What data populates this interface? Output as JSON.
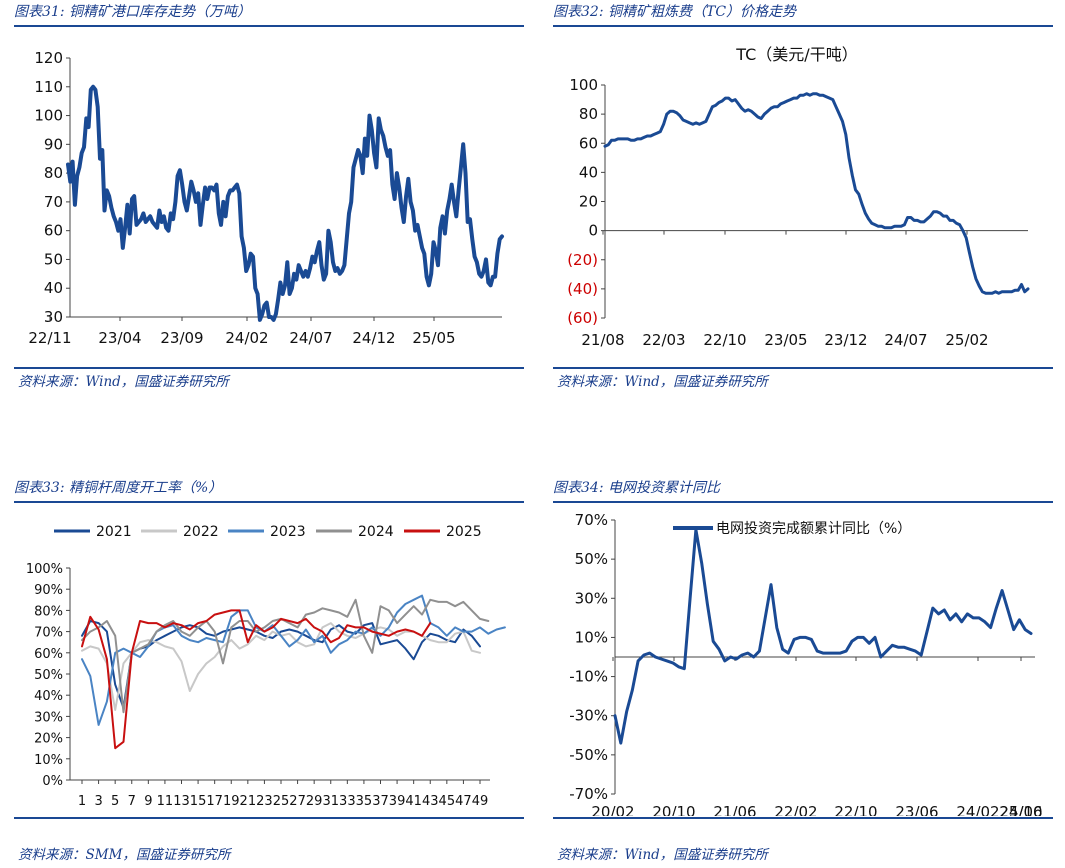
{
  "colors": {
    "title": "#1a3e8c",
    "rule": "#1a4894",
    "navy": "#1a4a94",
    "neg": "#cc0000"
  },
  "chart_data": [
    {
      "id": "c31",
      "type": "line",
      "title": "图表31:  铜精矿港口库存走势（万吨）",
      "source": "资料来源：Wind，国盛证券研究所",
      "ylim": [
        30,
        120
      ],
      "yticks": [
        "120",
        "110",
        "100",
        "90",
        "80",
        "70",
        "60",
        "50",
        "40",
        "30"
      ],
      "xticks": [
        "22/11",
        "23/04",
        "23/09",
        "24/02",
        "24/07",
        "24/12",
        "25/05"
      ],
      "series": [
        {
          "name": "港口库存",
          "color": "#1a4a94",
          "values": [
            83,
            77,
            84,
            69,
            79,
            82,
            87,
            89,
            99,
            96,
            109,
            110,
            109,
            103,
            85,
            88,
            67,
            74,
            72,
            68,
            65,
            63,
            60,
            64,
            54,
            61,
            69,
            59,
            71,
            72,
            62,
            63,
            64,
            66,
            63,
            64,
            65,
            63,
            62,
            61,
            67,
            63,
            65,
            61,
            60,
            66,
            64,
            70,
            79,
            81,
            76,
            70,
            67,
            72,
            77,
            74,
            70,
            73,
            62,
            69,
            75,
            71,
            75,
            75,
            74,
            76,
            66,
            62,
            70,
            65,
            72,
            74,
            74,
            75,
            76,
            73,
            58,
            54,
            46,
            48,
            52,
            51,
            40,
            38,
            29,
            31,
            34,
            35,
            30,
            30,
            29,
            31,
            36,
            42,
            38,
            41,
            49,
            38,
            40,
            45,
            43,
            48,
            46,
            44,
            46,
            44,
            47,
            51,
            49,
            53,
            56,
            48,
            43,
            45,
            60,
            56,
            49,
            46,
            47,
            45,
            46,
            48,
            57,
            66,
            70,
            82,
            85,
            88,
            86,
            80,
            92,
            86,
            100,
            95,
            87,
            82,
            99,
            95,
            93,
            89,
            86,
            88,
            76,
            71,
            80,
            75,
            68,
            63,
            72,
            78,
            70,
            67,
            60,
            62,
            58,
            54,
            52,
            44,
            41,
            45,
            56,
            53,
            48,
            61,
            65,
            59,
            67,
            71,
            76,
            70,
            65,
            74,
            82,
            90,
            80,
            63,
            64,
            57,
            51,
            49,
            45,
            44,
            46,
            50,
            42,
            41,
            44,
            44,
            52,
            57,
            58
          ],
          "xrange": [
            0,
            193
          ]
        }
      ]
    },
    {
      "id": "c32",
      "type": "line",
      "title": "图表32:  铜精矿粗炼费（TC）价格走势",
      "source": "资料来源：Wind，国盛证券研究所",
      "inner_title": "TC（美元/干吨）",
      "ylim": [
        -60,
        100
      ],
      "yticks": [
        "100",
        "80",
        "60",
        "40",
        "20",
        "0",
        "(20)",
        "(40)",
        "(60)"
      ],
      "xticks": [
        "21/08",
        "22/03",
        "22/10",
        "23/05",
        "23/12",
        "24/07",
        "25/02"
      ],
      "series": [
        {
          "name": "TC",
          "color": "#1a4a94",
          "values": [
            58,
            59,
            62,
            62,
            63,
            63,
            63,
            63,
            62,
            62,
            63,
            63,
            64,
            65,
            65,
            66,
            67,
            68,
            73,
            80,
            82,
            82,
            81,
            79,
            76,
            75,
            74,
            73,
            74,
            73,
            74,
            75,
            80,
            85,
            86,
            88,
            89,
            91,
            91,
            89,
            90,
            87,
            84,
            82,
            83,
            82,
            80,
            78,
            77,
            80,
            82,
            84,
            85,
            85,
            87,
            88,
            89,
            90,
            91,
            91,
            93,
            93,
            94,
            93,
            94,
            94,
            93,
            93,
            92,
            91,
            90,
            85,
            80,
            75,
            66,
            50,
            38,
            28,
            25,
            18,
            12,
            8,
            5,
            4,
            3,
            3,
            2,
            2,
            2,
            3,
            3,
            3,
            4,
            9,
            9,
            7,
            7,
            6,
            6,
            8,
            10,
            13,
            13,
            12,
            10,
            10,
            7,
            7,
            5,
            4,
            0,
            -5,
            -15,
            -25,
            -33,
            -38,
            -42,
            -43,
            -43,
            -43,
            -42,
            -43,
            -42,
            -42,
            -42,
            -42,
            -41,
            -41,
            -37,
            -42,
            -40
          ],
          "xrange": [
            0,
            141
          ]
        }
      ]
    },
    {
      "id": "c33",
      "type": "line",
      "title": "图表33:  精铜杆周度开工率（%）",
      "source": "资料来源：SMM，国盛证券研究所",
      "ylim": [
        0,
        100
      ],
      "yticks": [
        "100%",
        "90%",
        "80%",
        "70%",
        "60%",
        "50%",
        "40%",
        "30%",
        "20%",
        "10%",
        "0%"
      ],
      "xticks": [
        "1",
        "3",
        "5",
        "7",
        "9",
        "11",
        "13",
        "15",
        "17",
        "19",
        "21",
        "23",
        "25",
        "27",
        "29",
        "31",
        "33",
        "35",
        "37",
        "39",
        "41",
        "43",
        "45",
        "47",
        "49"
      ],
      "series": [
        {
          "name": "2021",
          "color": "#1a4a94",
          "values": [
            68,
            75,
            74,
            70,
            45,
            34,
            60,
            62,
            63,
            66,
            68,
            70,
            72,
            73,
            72,
            69,
            68,
            70,
            71,
            72,
            71,
            70,
            68,
            67,
            70,
            71,
            70,
            68,
            66,
            65,
            71,
            73,
            70,
            69,
            73,
            74,
            64,
            65,
            66,
            62,
            57,
            65,
            69,
            68,
            66,
            65,
            71,
            68,
            63
          ]
        },
        {
          "name": "2022",
          "color": "#c8c8c8",
          "values": [
            61,
            63,
            62,
            55,
            33,
            55,
            60,
            65,
            66,
            65,
            63,
            62,
            56,
            42,
            50,
            55,
            58,
            63,
            66,
            62,
            64,
            68,
            66,
            70,
            68,
            69,
            65,
            63,
            64,
            72,
            74,
            70,
            68,
            67,
            69,
            71,
            72,
            71,
            68,
            70,
            70,
            68,
            66,
            65,
            65,
            69,
            70,
            61,
            60
          ]
        },
        {
          "name": "2023",
          "color": "#4a84c4",
          "values": [
            57,
            49,
            26,
            37,
            60,
            62,
            60,
            58,
            63,
            70,
            72,
            73,
            68,
            66,
            65,
            67,
            66,
            65,
            77,
            80,
            80,
            72,
            70,
            73,
            68,
            63,
            66,
            71,
            65,
            68,
            60,
            64,
            66,
            70,
            69,
            72,
            68,
            72,
            79,
            83,
            85,
            87,
            74,
            72,
            68,
            72,
            70,
            70,
            72,
            69,
            71,
            72
          ]
        },
        {
          "name": "2024",
          "color": "#909090",
          "values": [
            66,
            70,
            72,
            75,
            68,
            32,
            60,
            62,
            64,
            70,
            73,
            75,
            70,
            68,
            72,
            75,
            70,
            55,
            72,
            75,
            75,
            70,
            72,
            75,
            76,
            74,
            72,
            78,
            79,
            81,
            80,
            79,
            77,
            85,
            68,
            60,
            82,
            80,
            74,
            78,
            82,
            78,
            85,
            84,
            84,
            82,
            84,
            80,
            76,
            75
          ]
        },
        {
          "name": "2025",
          "color": "#c81010",
          "values": [
            63,
            77,
            71,
            57,
            15,
            18,
            60,
            75,
            74,
            74,
            72,
            74,
            73,
            71,
            74,
            75,
            78,
            79,
            80,
            80,
            65,
            73,
            70,
            72,
            76,
            75,
            74,
            76,
            72,
            70,
            65,
            67,
            73,
            72,
            72,
            70,
            69,
            68,
            70,
            71,
            70,
            68,
            74
          ]
        }
      ],
      "xrange": [
        1,
        49
      ]
    },
    {
      "id": "c34",
      "type": "line",
      "title": "图表34:  电网投资累计同比",
      "source": "资料来源：Wind，国盛证券研究所",
      "legend": "电网投资完成额累计同比（%）",
      "ylim": [
        -70,
        70
      ],
      "yticks": [
        "70%",
        "50%",
        "30%",
        "10%",
        "-10%",
        "-30%",
        "-50%",
        "-70%"
      ],
      "xticks": [
        "20/02",
        "20/10",
        "21/06",
        "22/02",
        "22/10",
        "23/06",
        "24/02",
        "24/10",
        "25/06"
      ],
      "series": [
        {
          "name": "电网投资完成额累计同比（%）",
          "color": "#1a4a94",
          "values": [
            -30,
            -44,
            -28,
            -17,
            -2,
            1,
            2,
            0,
            -1,
            -2,
            -3,
            -5,
            -6,
            30,
            65,
            48,
            27,
            8,
            4,
            -2,
            0,
            -1,
            1,
            2,
            0,
            3,
            20,
            37,
            15,
            4,
            2,
            9,
            10,
            10,
            9,
            3,
            2,
            2,
            2,
            2,
            3,
            8,
            10,
            10,
            7,
            10,
            0,
            3,
            6,
            5,
            5,
            4,
            3,
            1,
            13,
            25,
            22,
            24,
            19,
            22,
            18,
            22,
            20,
            20,
            18,
            15,
            25,
            34,
            24,
            14,
            19,
            14,
            12
          ]
        }
      ],
      "xrange": [
        0,
        72
      ]
    }
  ]
}
